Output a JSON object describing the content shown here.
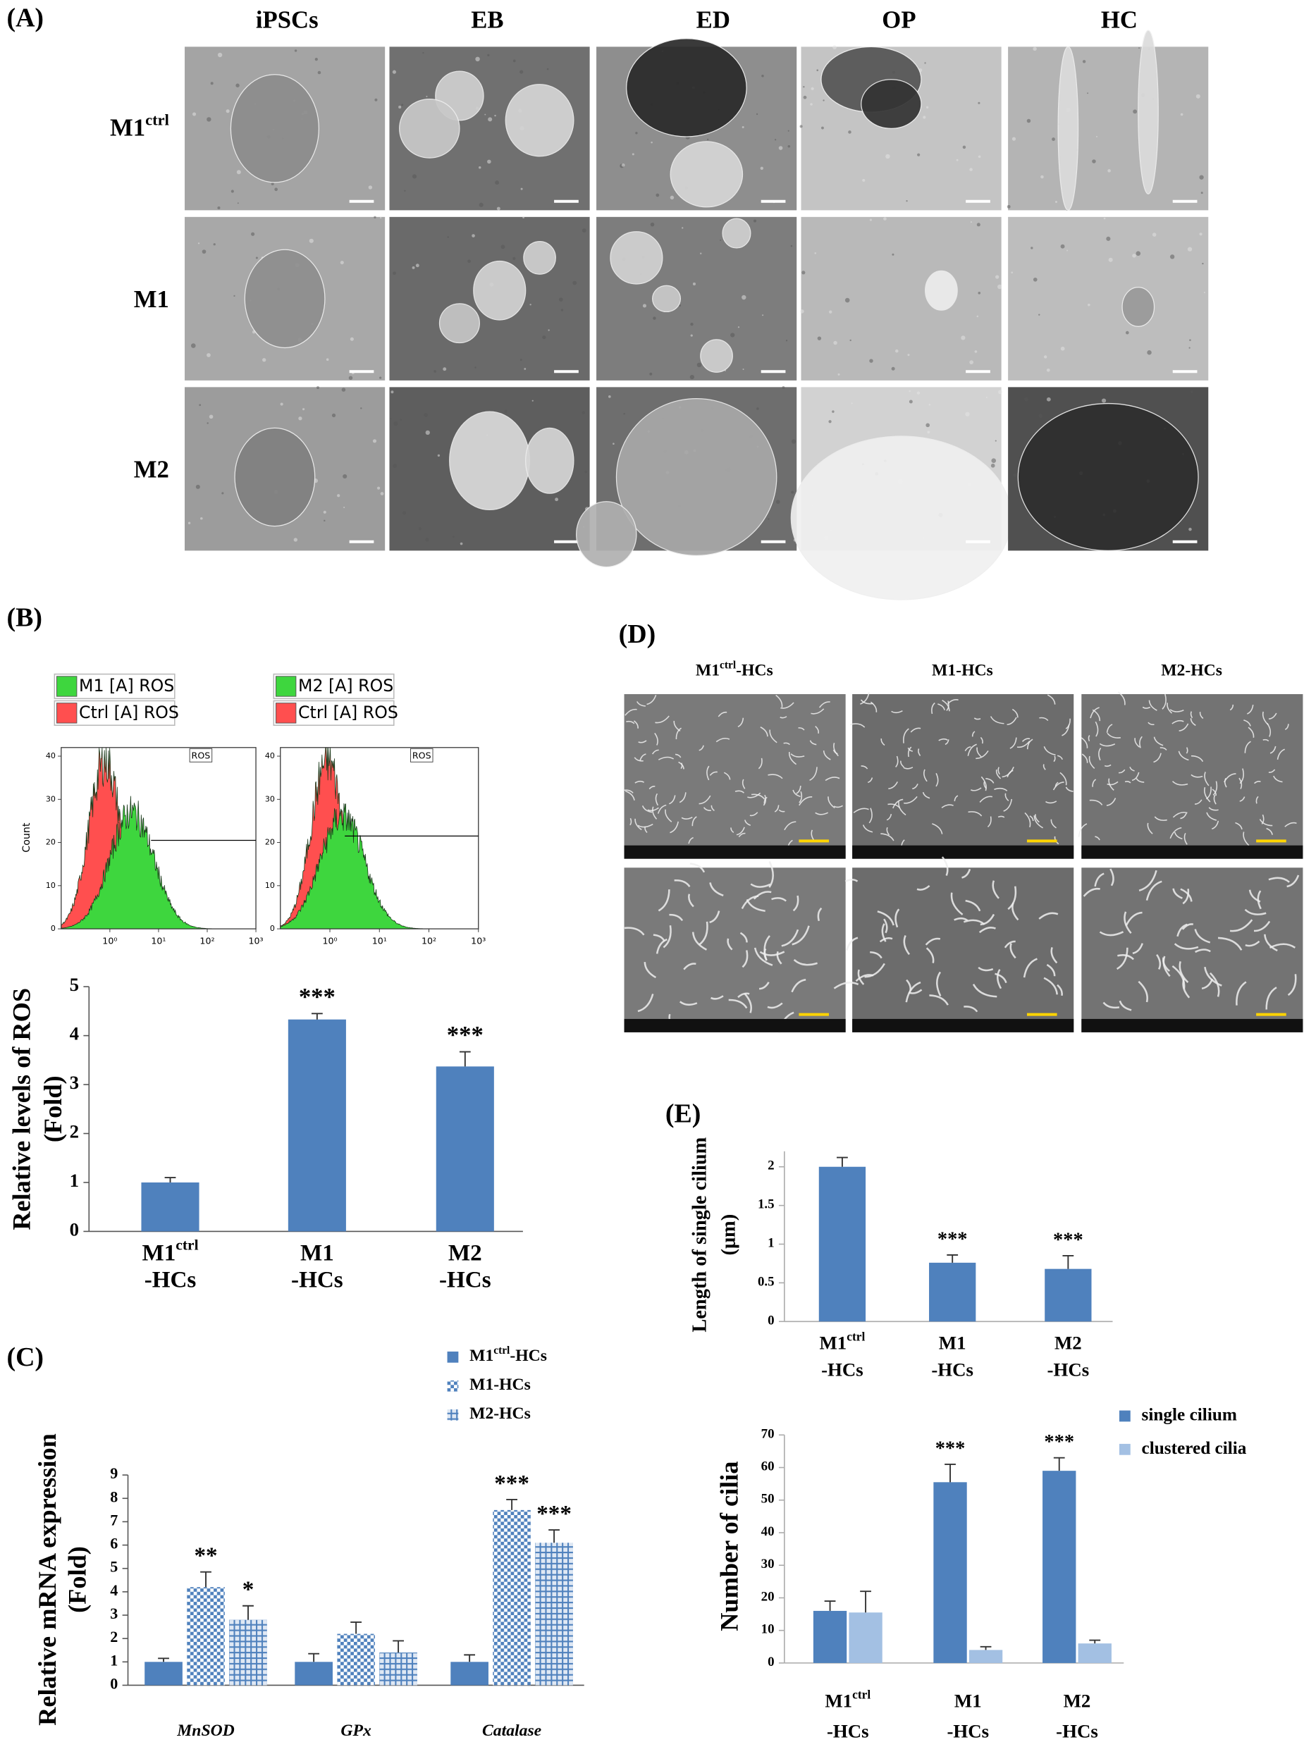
{
  "panel_a": {
    "label": "(A)",
    "columns": [
      "iPSCs",
      "EB",
      "ED",
      "OP",
      "HC"
    ],
    "rows": [
      "M1ctrl",
      "M1",
      "M2"
    ]
  },
  "panel_b_flow": {
    "label": "(B)",
    "plots": [
      {
        "legend": [
          "M1 [A] ROS",
          "Ctrl [A] ROS"
        ],
        "legend_colors": [
          "#3ed63e",
          "#ff4f4f"
        ],
        "gate": "ROS"
      },
      {
        "legend": [
          "M2 [A] ROS",
          "Ctrl [A] ROS"
        ],
        "legend_colors": [
          "#3ed63e",
          "#ff4f4f"
        ],
        "gate": "ROS"
      }
    ],
    "y_label": "Count",
    "ylim": [
      0,
      42
    ],
    "yticks": [
      0,
      10,
      20,
      30,
      40
    ],
    "log_x": true,
    "xlim": [
      0.1,
      1000
    ],
    "xticks": [
      {
        "value": 1,
        "label": "10⁰"
      },
      {
        "value": 10,
        "label": "10¹"
      },
      {
        "value": 100,
        "label": "10²"
      },
      {
        "value": 1000,
        "label": "10³"
      }
    ]
  },
  "panel_d": {
    "label": "(D)",
    "columns": [
      "M1ctrl-HCs",
      "M1-HCs",
      "M2-HCs"
    ]
  },
  "chart_data": [
    {
      "type": "bar",
      "y_label": [
        "Relative levels of ROS",
        "(Fold)"
      ],
      "categories": [
        "M1ctrl\n-HCs",
        "M1\n-HCs",
        "M2\n-HCs"
      ],
      "values": [
        1.0,
        4.33,
        3.37
      ],
      "errors": [
        0.1,
        0.12,
        0.3
      ],
      "annotations": [
        null,
        "***",
        "***"
      ],
      "color": "#4f81bd",
      "fill_style": "solid",
      "ylim": [
        0,
        5
      ],
      "yticks": [
        0,
        1,
        2,
        3,
        4,
        5
      ]
    },
    {
      "type": "bar",
      "panel": "(C)",
      "y_label": [
        "Relative mRNA expression",
        "(Fold)"
      ],
      "categories": [
        "MnSOD",
        "GPx",
        "Catalase"
      ],
      "category_style": "italic",
      "series": [
        {
          "name": "M1ctrl-HCs",
          "color": "#4f81bd",
          "fill_style": "solid",
          "values": [
            1.0,
            1.0,
            1.0
          ],
          "errors": [
            0.15,
            0.35,
            0.3
          ],
          "annotations": [
            null,
            null,
            null
          ]
        },
        {
          "name": "M1-HCs",
          "color": "#4f81bd",
          "fill_style": "checker",
          "values": [
            4.2,
            2.2,
            7.5
          ],
          "errors": [
            0.65,
            0.5,
            0.45
          ],
          "annotations": [
            "**",
            null,
            "***"
          ]
        },
        {
          "name": "M2-HCs",
          "color": "#4f81bd",
          "fill_style": "grid",
          "values": [
            2.8,
            1.4,
            6.1
          ],
          "errors": [
            0.6,
            0.5,
            0.55
          ],
          "annotations": [
            "*",
            null,
            "***"
          ]
        }
      ],
      "ylim": [
        0,
        9
      ],
      "yticks": [
        0,
        1,
        2,
        3,
        4,
        5,
        6,
        7,
        8,
        9
      ],
      "legend": "top-right"
    },
    {
      "type": "bar",
      "panel": "(E)",
      "y_label": [
        "Length of single cilium",
        "(μm)"
      ],
      "categories": [
        "M1ctrl\n-HCs",
        "M1\n-HCs",
        "M2\n-HCs"
      ],
      "values": [
        2.0,
        0.76,
        0.68
      ],
      "errors": [
        0.12,
        0.1,
        0.17
      ],
      "annotations": [
        null,
        "***",
        "***"
      ],
      "color": "#4f81bd",
      "fill_style": "solid",
      "ylim": [
        0,
        2.2
      ],
      "yticks": [
        0,
        0.5,
        1,
        1.5,
        2
      ]
    },
    {
      "type": "bar",
      "y_label": [
        "Number of cilia"
      ],
      "categories": [
        "M1ctrl\n-HCs",
        "M1\n-HCs",
        "M2\n-HCs"
      ],
      "series": [
        {
          "name": "single cilium",
          "color": "#4f81bd",
          "fill_style": "solid",
          "values": [
            16,
            55.5,
            59
          ],
          "errors": [
            3,
            5.5,
            4
          ],
          "annotations": [
            null,
            "***",
            "***"
          ]
        },
        {
          "name": "clustered cilia",
          "color": "#a3c0e3",
          "fill_style": "solid",
          "values": [
            15.5,
            4,
            6
          ],
          "errors": [
            6.5,
            1,
            1
          ],
          "annotations": [
            null,
            null,
            null
          ]
        }
      ],
      "ylim": [
        0,
        70
      ],
      "yticks": [
        0,
        10,
        20,
        30,
        40,
        50,
        60,
        70
      ],
      "legend": "top-right"
    }
  ]
}
